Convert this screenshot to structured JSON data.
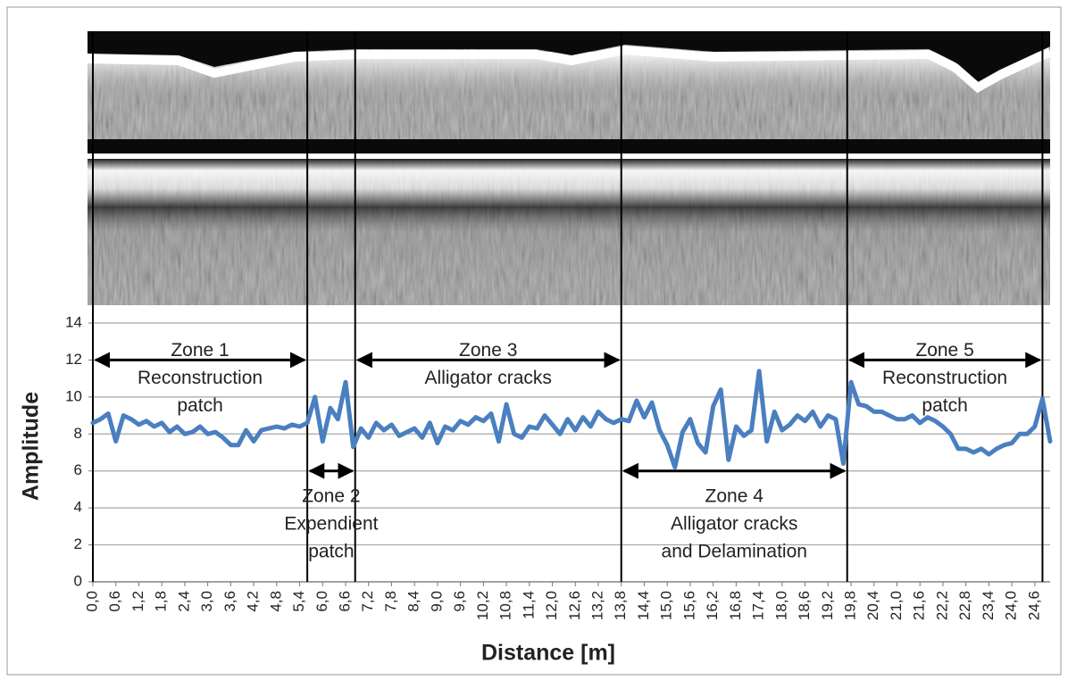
{
  "chart_data": {
    "type": "line",
    "x_label": "Distance [m]",
    "y_label": "Amplitude",
    "color": "#4a7fc0",
    "grid": true,
    "xlim": [
      0,
      25
    ],
    "ylim": [
      0,
      14
    ],
    "yticks": [
      0,
      2,
      4,
      6,
      8,
      10,
      12,
      14
    ],
    "xticks": [
      {
        "value": 0,
        "label": "0,0"
      },
      {
        "value": 0.6,
        "label": "0,6"
      },
      {
        "value": 1.2,
        "label": "1,2"
      },
      {
        "value": 1.8,
        "label": "1,8"
      },
      {
        "value": 2.4,
        "label": "2,4"
      },
      {
        "value": 3,
        "label": "3,0"
      },
      {
        "value": 3.6,
        "label": "3,6"
      },
      {
        "value": 4.2,
        "label": "4,2"
      },
      {
        "value": 4.8,
        "label": "4,8"
      },
      {
        "value": 5.4,
        "label": "5,4"
      },
      {
        "value": 6,
        "label": "6,0"
      },
      {
        "value": 6.6,
        "label": "6,6"
      },
      {
        "value": 7.2,
        "label": "7,2"
      },
      {
        "value": 7.8,
        "label": "7,8"
      },
      {
        "value": 8.4,
        "label": "8,4"
      },
      {
        "value": 9,
        "label": "9,0"
      },
      {
        "value": 9.6,
        "label": "9,6"
      },
      {
        "value": 10.2,
        "label": "10,2"
      },
      {
        "value": 10.8,
        "label": "10,8"
      },
      {
        "value": 11.4,
        "label": "11,4"
      },
      {
        "value": 12,
        "label": "12,0"
      },
      {
        "value": 12.6,
        "label": "12,6"
      },
      {
        "value": 13.2,
        "label": "13,2"
      },
      {
        "value": 13.8,
        "label": "13,8"
      },
      {
        "value": 14.4,
        "label": "14,4"
      },
      {
        "value": 15,
        "label": "15,0"
      },
      {
        "value": 15.6,
        "label": "15,6"
      },
      {
        "value": 16.2,
        "label": "16,2"
      },
      {
        "value": 16.8,
        "label": "16,8"
      },
      {
        "value": 17.4,
        "label": "17,4"
      },
      {
        "value": 18,
        "label": "18,0"
      },
      {
        "value": 18.6,
        "label": "18,6"
      },
      {
        "value": 19.2,
        "label": "19,2"
      },
      {
        "value": 19.8,
        "label": "19,8"
      },
      {
        "value": 20.4,
        "label": "20,4"
      },
      {
        "value": 21,
        "label": "21,0"
      },
      {
        "value": 21.6,
        "label": "21,6"
      },
      {
        "value": 22.2,
        "label": "22,2"
      },
      {
        "value": 22.8,
        "label": "22,8"
      },
      {
        "value": 23.4,
        "label": "23,4"
      },
      {
        "value": 24,
        "label": "24,0"
      },
      {
        "value": 24.6,
        "label": "24,6"
      }
    ],
    "x": [
      0,
      0.2,
      0.4,
      0.6,
      0.8,
      1,
      1.2,
      1.4,
      1.6,
      1.8,
      2,
      2.2,
      2.4,
      2.6,
      2.8,
      3,
      3.2,
      3.4,
      3.6,
      3.8,
      4,
      4.2,
      4.4,
      4.6,
      4.8,
      5,
      5.2,
      5.4,
      5.6,
      5.8,
      6,
      6.2,
      6.4,
      6.6,
      6.8,
      7,
      7.2,
      7.4,
      7.6,
      7.8,
      8,
      8.2,
      8.4,
      8.6,
      8.8,
      9,
      9.2,
      9.4,
      9.6,
      9.8,
      10,
      10.2,
      10.4,
      10.6,
      10.8,
      11,
      11.2,
      11.4,
      11.6,
      11.8,
      12,
      12.2,
      12.4,
      12.6,
      12.8,
      13,
      13.2,
      13.4,
      13.6,
      13.8,
      14,
      14.2,
      14.4,
      14.6,
      14.8,
      15,
      15.2,
      15.4,
      15.6,
      15.8,
      16,
      16.2,
      16.4,
      16.6,
      16.8,
      17,
      17.2,
      17.4,
      17.6,
      17.8,
      18,
      18.2,
      18.4,
      18.6,
      18.8,
      19,
      19.2,
      19.4,
      19.6,
      19.8,
      20,
      20.2,
      20.4,
      20.6,
      20.8,
      21,
      21.2,
      21.4,
      21.6,
      21.8,
      22,
      22.2,
      22.4,
      22.6,
      22.8,
      23,
      23.2,
      23.4,
      23.6,
      23.8,
      24,
      24.2,
      24.4,
      24.6,
      24.8,
      25
    ],
    "values": [
      8.6,
      8.8,
      9.1,
      7.6,
      9.0,
      8.8,
      8.5,
      8.7,
      8.4,
      8.6,
      8.1,
      8.4,
      8.0,
      8.1,
      8.4,
      8.0,
      8.1,
      7.8,
      7.4,
      7.4,
      8.2,
      7.6,
      8.2,
      8.3,
      8.4,
      8.3,
      8.5,
      8.4,
      8.6,
      10.0,
      7.6,
      9.4,
      8.8,
      10.8,
      7.3,
      8.3,
      7.8,
      8.6,
      8.2,
      8.5,
      7.9,
      8.1,
      8.3,
      7.8,
      8.6,
      7.5,
      8.4,
      8.2,
      8.7,
      8.5,
      8.9,
      8.7,
      9.1,
      7.6,
      9.6,
      8.0,
      7.8,
      8.4,
      8.3,
      9.0,
      8.5,
      8.0,
      8.8,
      8.2,
      8.9,
      8.4,
      9.2,
      8.8,
      8.6,
      8.8,
      8.7,
      9.8,
      8.9,
      9.7,
      8.2,
      7.4,
      6.2,
      8.1,
      8.8,
      7.5,
      7.0,
      9.5,
      10.4,
      6.6,
      8.4,
      7.9,
      8.2,
      11.4,
      7.6,
      9.2,
      8.2,
      8.5,
      9.0,
      8.7,
      9.2,
      8.4,
      9.0,
      8.8,
      6.4,
      10.8,
      9.6,
      9.5,
      9.2,
      9.2,
      9.0,
      8.8,
      8.8,
      9.0,
      8.6,
      8.9,
      8.7,
      8.4,
      8.0,
      7.2,
      7.2,
      7.0,
      7.2,
      6.9,
      7.2,
      7.4,
      7.5,
      8.0,
      8.0,
      8.4,
      9.9,
      7.6
    ],
    "zone_boundaries": [
      0,
      5.6,
      6.85,
      13.8,
      19.7,
      24.8
    ],
    "annotations": [
      {
        "text": [
          "Zone 1",
          "Reconstruction",
          "patch"
        ],
        "x": [
          0,
          5.6
        ],
        "y": 12
      },
      {
        "text": [
          "Zone 2",
          "Expendient",
          "patch"
        ],
        "x": [
          5.6,
          6.85
        ],
        "y": 6
      },
      {
        "text": [
          "Zone 3",
          "Alligator cracks"
        ],
        "x": [
          6.85,
          13.8
        ],
        "y": 12
      },
      {
        "text": [
          "Zone 4",
          "Alligator cracks",
          "and Delamination"
        ],
        "x": [
          13.8,
          19.7
        ],
        "y": 6
      },
      {
        "text": [
          "Zone 5",
          "Reconstruction",
          "patch"
        ],
        "x": [
          19.7,
          24.8
        ],
        "y": 12
      }
    ]
  }
}
